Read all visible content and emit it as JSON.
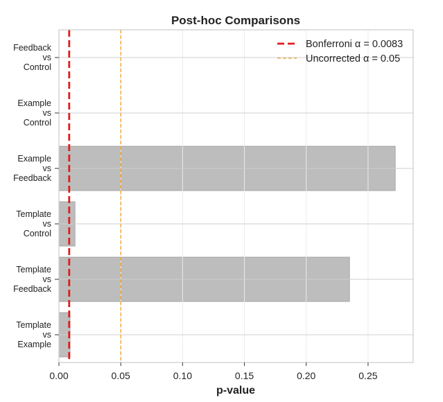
{
  "chart_data": {
    "type": "bar",
    "orientation": "horizontal",
    "title": "Post-hoc Comparisons",
    "xlabel": "p-value",
    "ylabel": "",
    "xlim": [
      0,
      0.2865
    ],
    "xticks": [
      "0.00",
      "0.05",
      "0.10",
      "0.15",
      "0.20",
      "0.25"
    ],
    "xtick_values": [
      0,
      0.05,
      0.1,
      0.15,
      0.2,
      0.25
    ],
    "grid": true,
    "legend_position": "top-right",
    "bar_color": "#bdbdbd",
    "categories": [
      [
        "Feedback",
        "vs",
        "Control"
      ],
      [
        "Example",
        "vs",
        "Control"
      ],
      [
        "Example",
        "vs",
        "Feedback"
      ],
      [
        "Template",
        "vs",
        "Control"
      ],
      [
        "Template",
        "vs",
        "Feedback"
      ],
      [
        "Template",
        "vs",
        "Example"
      ]
    ],
    "values": [
      0.0001,
      0.0001,
      0.272,
      0.013,
      0.235,
      0.009
    ],
    "reference_lines": [
      {
        "label": "Bonferroni α = 0.0083",
        "value": 0.0083,
        "color": "#e41a1c",
        "style": "dashed-bold"
      },
      {
        "label": "Uncorrected α = 0.05",
        "value": 0.05,
        "color": "#f0a020",
        "style": "dashed-thin"
      }
    ]
  }
}
